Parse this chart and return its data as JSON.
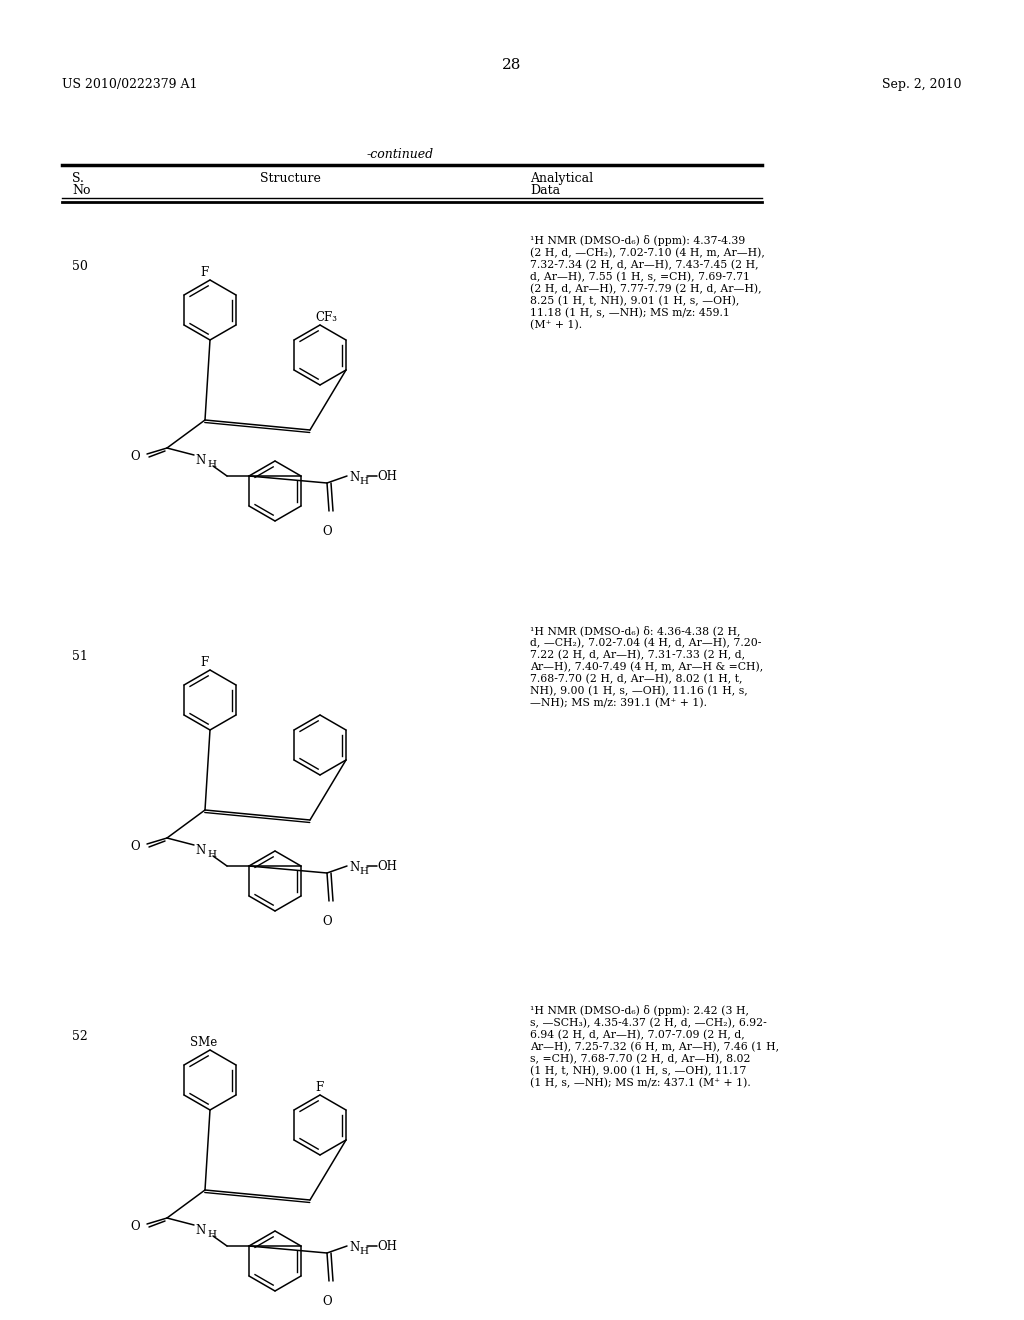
{
  "page_number": "28",
  "patent_number": "US 2010/0222379 A1",
  "patent_date": "Sep. 2, 2010",
  "continued_label": "-continued",
  "col1_header": [
    "S.",
    "No"
  ],
  "col2_header": "Structure",
  "col3_header": [
    "Analytical",
    "Data"
  ],
  "entries": [
    {
      "number": "50",
      "nmr_text": "¹H NMR (DMSO-d₆) δ (ppm): 4.37-4.39\n(2 H, d, —CH₂), 7.02-7.10 (4 H, m, Ar—H),\n7.32-7.34 (2 H, d, Ar—H), 7.43-7.45 (2 H,\nd, Ar—H), 7.55 (1 H, s, =CH), 7.69-7.71\n(2 H, d, Ar—H), 7.77-7.79 (2 H, d, Ar—H),\n8.25 (1 H, t, NH), 9.01 (1 H, s, —OH),\n11.18 (1 H, s, —NH); MS m/z: 459.1\n(M⁺ + 1).",
      "sub_left": "F",
      "sub_right": "CF₃"
    },
    {
      "number": "51",
      "nmr_text": "¹H NMR (DMSO-d₆) δ: 4.36-4.38 (2 H,\nd, —CH₂), 7.02-7.04 (4 H, d, Ar—H), 7.20-\n7.22 (2 H, d, Ar—H), 7.31-7.33 (2 H, d,\nAr—H), 7.40-7.49 (4 H, m, Ar—H & =CH),\n7.68-7.70 (2 H, d, Ar—H), 8.02 (1 H, t,\nNH), 9.00 (1 H, s, —OH), 11.16 (1 H, s,\n—NH); MS m/z: 391.1 (M⁺ + 1).",
      "sub_left": "F",
      "sub_right": ""
    },
    {
      "number": "52",
      "nmr_text": "¹H NMR (DMSO-d₆) δ (ppm): 2.42 (3 H,\ns, —SCH₃), 4.35-4.37 (2 H, d, —CH₂), 6.92-\n6.94 (2 H, d, Ar—H), 7.07-7.09 (2 H, d,\nAr—H), 7.25-7.32 (6 H, m, Ar—H), 7.46 (1 H,\ns, =CH), 7.68-7.70 (2 H, d, Ar—H), 8.02\n(1 H, t, NH), 9.00 (1 H, s, —OH), 11.17\n(1 H, s, —NH); MS m/z: 437.1 (M⁺ + 1).",
      "sub_left": "SMe",
      "sub_right": "F"
    }
  ],
  "bg_color": "#ffffff",
  "text_color": "#000000"
}
